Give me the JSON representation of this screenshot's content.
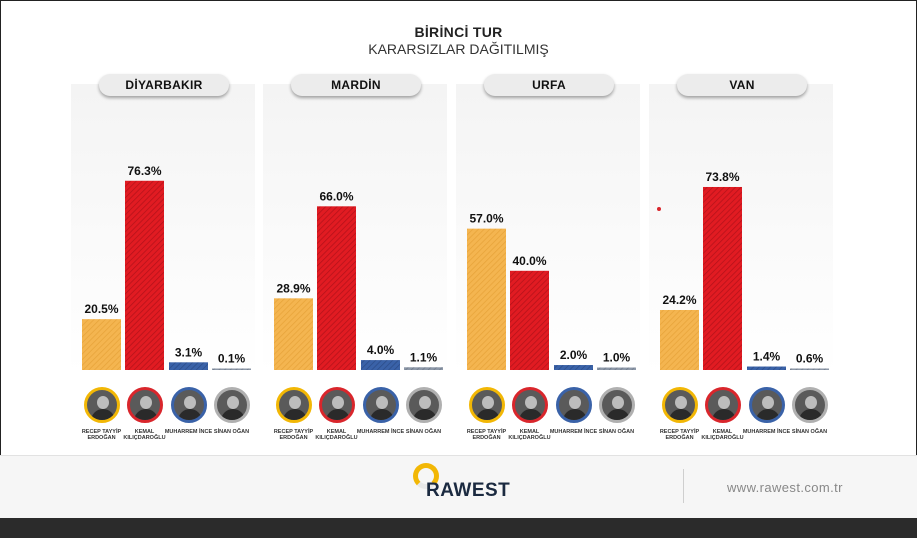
{
  "chart_data": {
    "type": "bar",
    "title": "BİRİNCİ TUR",
    "subtitle": "KARARSIZLAR DAĞITILMIŞ",
    "ylim": [
      0,
      100
    ],
    "candidates": [
      {
        "name": "RECEP TAYYİP ERDOĞAN",
        "color": "#f4b550",
        "ring": "#f2b705"
      },
      {
        "name": "KEMAL KILIÇDAROĞLU",
        "color": "#e11b22",
        "ring": "#d9262c"
      },
      {
        "name": "MUHARREM İNCE",
        "color": "#3a62a8",
        "ring": "#3a62a8"
      },
      {
        "name": "SİNAN OĞAN",
        "color": "#8d98a8",
        "ring": "#b0b0b0"
      }
    ],
    "panels": [
      {
        "region": "DİYARBAKIR",
        "values": [
          20.5,
          76.3,
          3.1,
          0.1
        ],
        "labels": [
          "20.5%",
          "76.3%",
          "3.1%",
          "0.1%"
        ]
      },
      {
        "region": "MARDİN",
        "values": [
          28.9,
          66.0,
          4.0,
          1.1
        ],
        "labels": [
          "28.9%",
          "66.0%",
          "4.0%",
          "1.1%"
        ]
      },
      {
        "region": "URFA",
        "values": [
          57.0,
          40.0,
          2.0,
          1.0
        ],
        "labels": [
          "57.0%",
          "40.0%",
          "2.0%",
          "1.0%"
        ]
      },
      {
        "region": "VAN",
        "values": [
          24.2,
          73.8,
          1.4,
          0.6
        ],
        "labels": [
          "24.2%",
          "73.8%",
          "1.4%",
          "0.6%"
        ]
      }
    ]
  },
  "footer": {
    "logo_text": "RAWEST",
    "website": "www.rawest.com.tr"
  }
}
